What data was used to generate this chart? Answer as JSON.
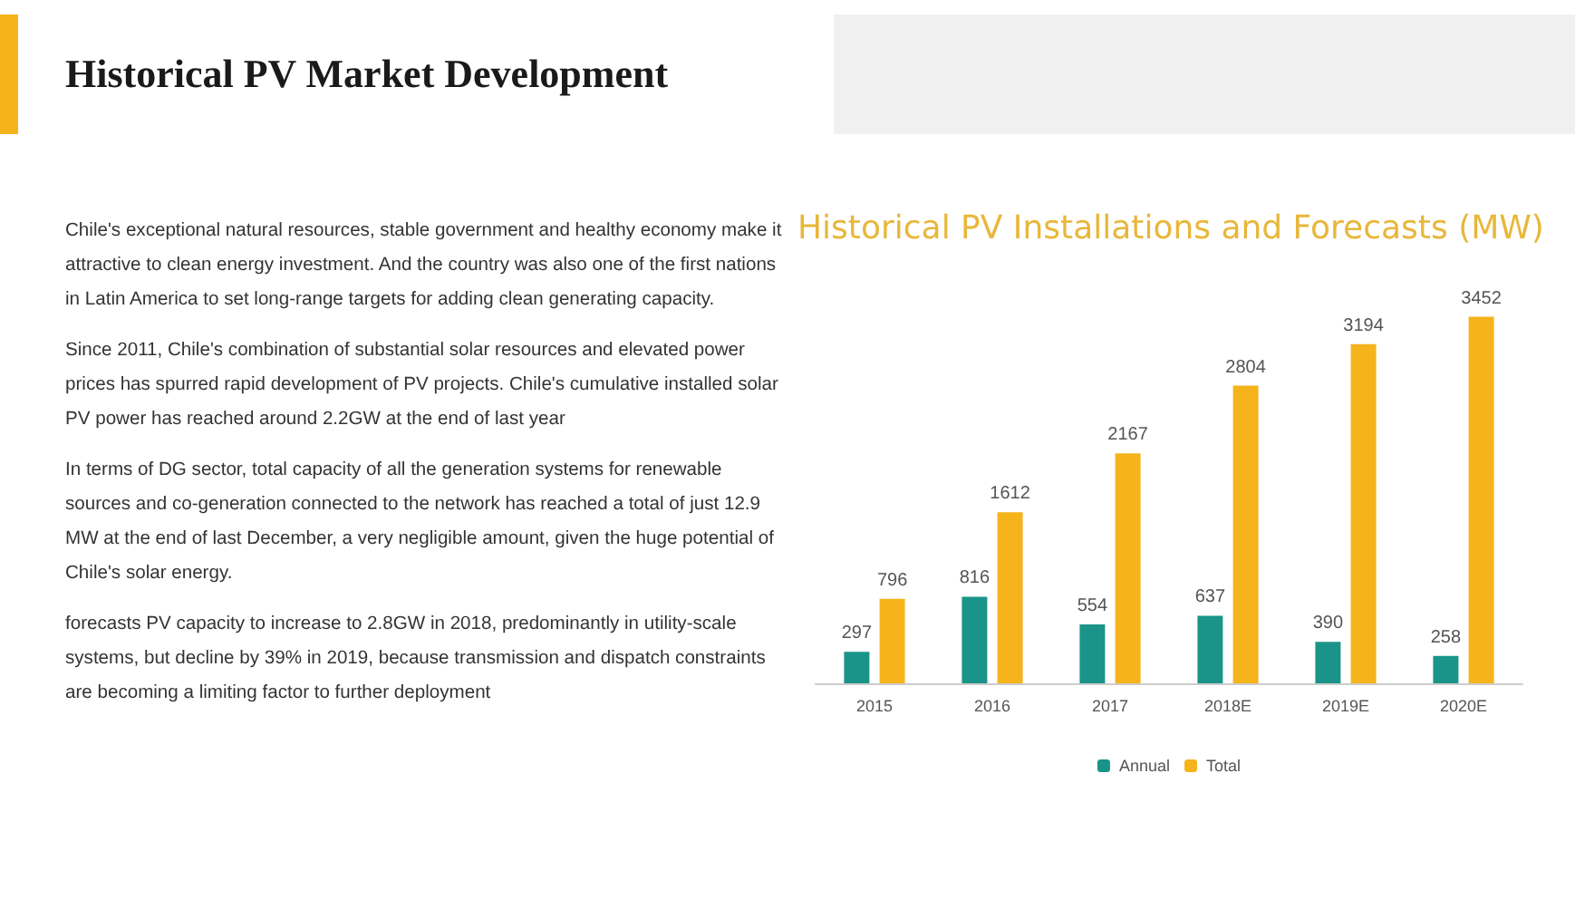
{
  "chart_data": {
    "type": "bar",
    "title": "Historical PV Market Development",
    "subtitle": "Historical PV Installations and Forecasts (MW)",
    "annotations": [
      "Chile's exceptional natural resources, stable government and healthy economy make it attractive to clean energy investment. And the country was also one of the first nations in Latin America to set long-range targets for adding clean generating capacity.",
      "Since 2011, Chile's combination of substantial solar resources and elevated power prices has spurred rapid development of PV projects. Chile's cumulative installed solar PV power has reached around 2.2GW at the end of last year",
      "In terms of DG sector, total capacity of all the generation systems for renewable sources and co-generation connected to the network has reached a total of just 12.9 MW at the end of last December, a very negligible amount, given the huge potential of Chile's solar energy.",
      "forecasts PV capacity to increase to 2.8GW in 2018, predominantly in utility-scale systems, but decline by 39% in 2019, because transmission and dispatch constraints are becoming a limiting factor to further deployment"
    ],
    "categories": [
      "2015",
      "2016",
      "2017",
      "2018E",
      "2019E",
      "2020E"
    ],
    "series": [
      {
        "name": "Annual",
        "color": "#1a9488",
        "values": [
          297,
          816,
          554,
          637,
          390,
          258
        ]
      },
      {
        "name": "Total",
        "color": "#f5b31c",
        "values": [
          796,
          1612,
          2167,
          2804,
          3194,
          3452
        ]
      }
    ],
    "data_labels": true,
    "legend": "bottom",
    "grid": false
  }
}
